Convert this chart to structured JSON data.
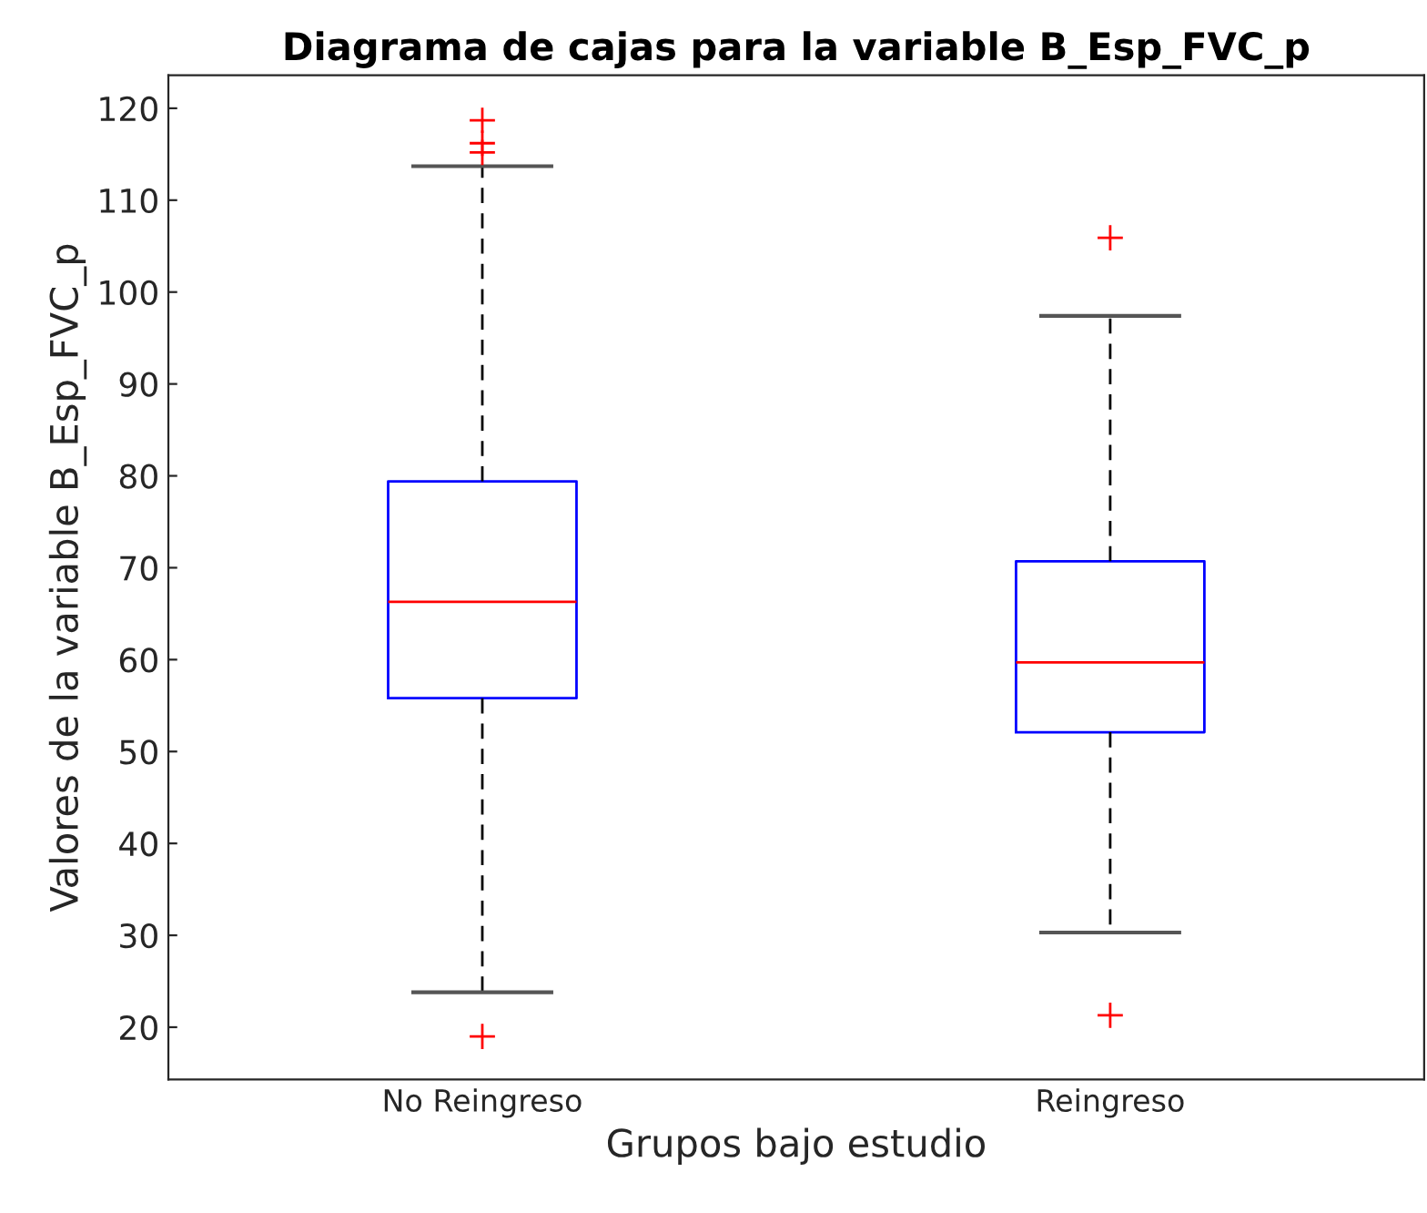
{
  "chart_data": {
    "type": "box",
    "title": "Diagrama de cajas para la variable B_Esp_FVC_p",
    "xlabel": "Grupos bajo estudio",
    "ylabel": "Valores de la variable B_Esp_FVC_p",
    "categories": [
      "No Reingreso",
      "Reingreso"
    ],
    "boxes": [
      {
        "low": 23.8,
        "q1": 55.8,
        "median": 66.3,
        "q3": 79.4,
        "high": 113.7,
        "outliers": [
          118.7,
          116.2,
          115.2,
          19.0
        ]
      },
      {
        "low": 30.3,
        "q1": 52.1,
        "median": 59.7,
        "q3": 70.7,
        "high": 97.4,
        "outliers": [
          105.9,
          21.3
        ]
      }
    ],
    "color": "#0000ff",
    "ylim": [
      14.3,
      123.6
    ],
    "yticks": [
      20,
      30,
      40,
      50,
      60,
      70,
      80,
      90,
      100,
      110,
      120
    ],
    "grid": false,
    "marker": "cross"
  }
}
